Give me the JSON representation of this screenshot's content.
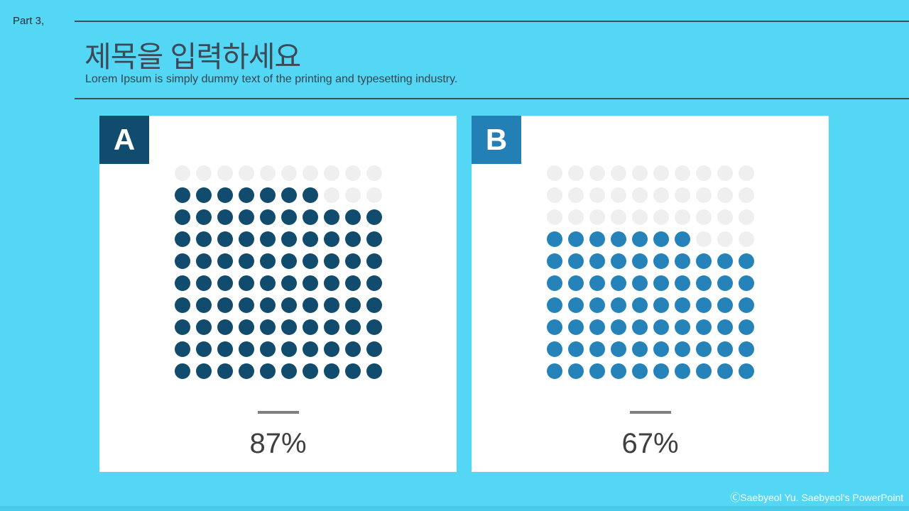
{
  "slide": {
    "part_label": "Part 3,",
    "title": "제목을 입력하세요",
    "subtitle": "Lorem Ipsum is simply dummy text of the printing and typesetting industry.",
    "footer_credit": "ⒸSaebyeol Yu.  Saebyeol's PowerPoint"
  },
  "colors": {
    "background": "#54D6F5",
    "card_background": "#FFFFFF",
    "badge_a": "#114B6D",
    "badge_b": "#2280B7",
    "dot_filled_a": "#114B6D",
    "dot_filled_b": "#2583BA",
    "dot_empty": "#EFEFEF",
    "header_text": "#3C4A58",
    "header_rule": "#3D4F5E",
    "percent_text": "#3F3F3F",
    "divider_gray": "#7F7F7F",
    "footer_text": "#FFFFFF",
    "bottom_strip": "#4ACAE9"
  },
  "cards": [
    {
      "badge_label": "A",
      "percent_label": "87%"
    },
    {
      "badge_label": "B",
      "percent_label": "67%"
    }
  ],
  "chart_data": [
    {
      "type": "waffle",
      "title": "A",
      "percent": 87,
      "percent_label": "87%",
      "rows": 10,
      "cols": 10,
      "total_dots": 100,
      "filled_dots": 87,
      "empty_dots": 13,
      "fill_order": "bottom-to-top, left-to-right in partial row",
      "filled_color": "#114B6D",
      "empty_color": "#EFEFEF"
    },
    {
      "type": "waffle",
      "title": "B",
      "percent": 67,
      "percent_label": "67%",
      "rows": 10,
      "cols": 10,
      "total_dots": 100,
      "filled_dots": 67,
      "empty_dots": 33,
      "fill_order": "bottom-to-top, left-to-right in partial row",
      "filled_color": "#2583BA",
      "empty_color": "#EFEFEF"
    }
  ]
}
